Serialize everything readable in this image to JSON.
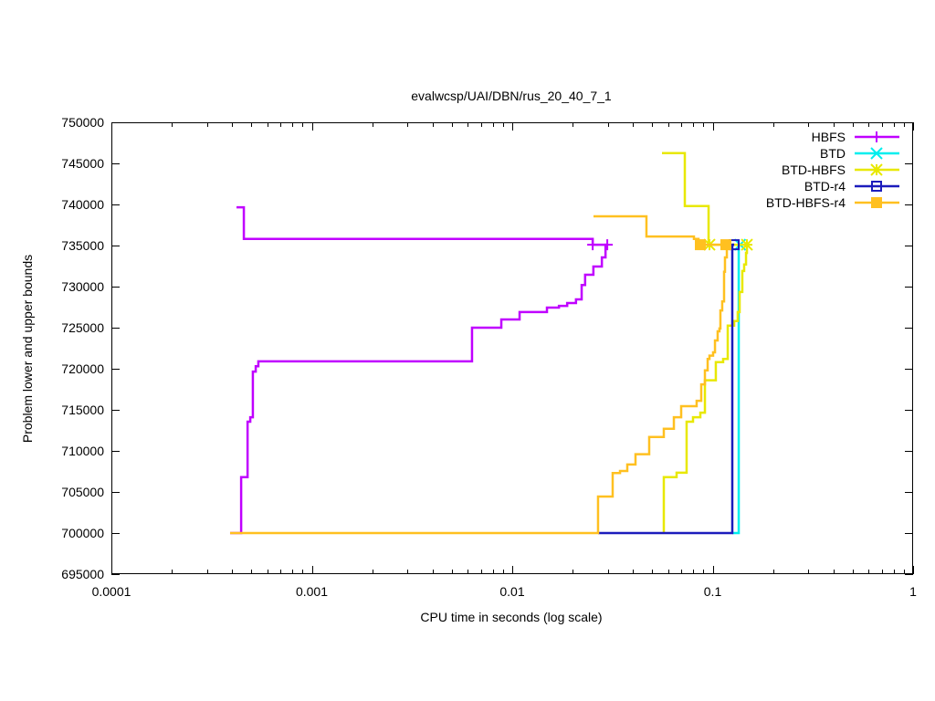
{
  "chart_data": {
    "type": "line",
    "title": "evalwcsp/UAI/DBN/rus_20_40_7_1",
    "xlabel": "CPU time in seconds (log scale)",
    "ylabel": "Problem lower and upper bounds",
    "xscale": "log",
    "xlim": [
      0.0001,
      1
    ],
    "ylim": [
      695000,
      750000
    ],
    "xticks": [
      0.0001,
      0.001,
      0.01,
      0.1,
      1
    ],
    "xtick_labels": [
      "0.0001",
      "0.001",
      "0.01",
      "0.1",
      "1"
    ],
    "yticks": [
      695000,
      700000,
      705000,
      710000,
      715000,
      720000,
      725000,
      730000,
      735000,
      740000,
      745000,
      750000
    ],
    "ytick_labels": [
      "695000",
      "700000",
      "705000",
      "710000",
      "715000",
      "720000",
      "725000",
      "730000",
      "735000",
      "740000",
      "745000",
      "750000"
    ],
    "grid": false,
    "legend_position": "top-right",
    "step_style": "horizontal-then-vertical",
    "series": [
      {
        "name": "HBFS",
        "color": "#c000ff",
        "marker": "plus",
        "markers": [
          [
            0.0252,
            735100
          ],
          [
            0.0298,
            735100
          ]
        ],
        "lower": [
          [
            0.000391,
            700000
          ],
          [
            0.000444,
            706800
          ],
          [
            0.000478,
            713550
          ],
          [
            0.000493,
            714100
          ],
          [
            0.000508,
            719650
          ],
          [
            0.000525,
            720300
          ],
          [
            0.000541,
            720900
          ],
          [
            0.0063,
            725000
          ],
          [
            0.00882,
            726000
          ],
          [
            0.01088,
            726900
          ],
          [
            0.0149,
            727450
          ],
          [
            0.0171,
            727650
          ],
          [
            0.0188,
            728000
          ],
          [
            0.0208,
            728450
          ],
          [
            0.0222,
            730200
          ],
          [
            0.0231,
            731450
          ],
          [
            0.0254,
            732450
          ],
          [
            0.028,
            733550
          ],
          [
            0.0292,
            735100
          ],
          [
            0.0298,
            735100
          ]
        ],
        "upper": [
          [
            0.000421,
            739650
          ],
          [
            0.000458,
            735800
          ],
          [
            0.0252,
            735100
          ],
          [
            0.0298,
            735100
          ]
        ]
      },
      {
        "name": "BTD",
        "color": "#00eeee",
        "marker": "cross",
        "markers": [
          [
            0.137,
            735100
          ]
        ],
        "lower": [
          [
            0.1253,
            700000
          ],
          [
            0.1349,
            735100
          ],
          [
            0.137,
            735100
          ]
        ],
        "upper": [
          [
            0.1349,
            735100
          ],
          [
            0.137,
            735100
          ]
        ]
      },
      {
        "name": "BTD-HBFS",
        "color": "#e8e800",
        "marker": "asterisk",
        "markers": [
          [
            0.0964,
            735100
          ],
          [
            0.1482,
            735100
          ]
        ],
        "lower": [
          [
            0.05705,
            700000
          ],
          [
            0.05705,
            706800
          ],
          [
            0.06607,
            707350
          ],
          [
            0.07413,
            713550
          ],
          [
            0.0798,
            714100
          ],
          [
            0.0868,
            714650
          ],
          [
            0.09148,
            718600
          ],
          [
            0.1037,
            720800
          ],
          [
            0.1128,
            721200
          ],
          [
            0.1189,
            725250
          ],
          [
            0.128,
            725800
          ],
          [
            0.1334,
            726900
          ],
          [
            0.1363,
            729350
          ],
          [
            0.1406,
            731900
          ],
          [
            0.1436,
            732700
          ],
          [
            0.1467,
            734100
          ],
          [
            0.1482,
            735100
          ]
        ],
        "upper": [
          [
            0.05587,
            746250
          ],
          [
            0.07262,
            739800
          ],
          [
            0.09541,
            735100
          ],
          [
            0.1482,
            735100
          ]
        ]
      },
      {
        "name": "BTD-r4",
        "color": "#1c1cbc",
        "marker": "open-square",
        "markers": [
          [
            0.128,
            735100
          ]
        ],
        "lower": [
          [
            0.0268,
            700000
          ],
          [
            0.1253,
            735100
          ],
          [
            0.128,
            735100
          ]
        ],
        "upper": [
          [
            0.1253,
            735100
          ],
          [
            0.128,
            735100
          ]
        ]
      },
      {
        "name": "BTD-HBFS-r4",
        "color": "#ffc020",
        "marker": "filled-square",
        "markers": [
          [
            0.0868,
            735100
          ],
          [
            0.1164,
            735100
          ]
        ],
        "lower": [
          [
            0.000391,
            700000
          ],
          [
            0.0268,
            704450
          ],
          [
            0.0317,
            707300
          ],
          [
            0.03449,
            707550
          ],
          [
            0.0375,
            708350
          ],
          [
            0.04121,
            709600
          ],
          [
            0.04823,
            711700
          ],
          [
            0.05705,
            712700
          ],
          [
            0.06404,
            714100
          ],
          [
            0.06964,
            715450
          ],
          [
            0.08318,
            716100
          ],
          [
            0.0877,
            718100
          ],
          [
            0.09148,
            719800
          ],
          [
            0.09441,
            721200
          ],
          [
            0.0964,
            721600
          ],
          [
            0.1005,
            722000
          ],
          [
            0.1027,
            723450
          ],
          [
            0.1059,
            724550
          ],
          [
            0.1081,
            724900
          ],
          [
            0.1093,
            727100
          ],
          [
            0.1116,
            728200
          ],
          [
            0.114,
            731800
          ],
          [
            0.1152,
            733550
          ],
          [
            0.1177,
            734550
          ],
          [
            0.1177,
            735100
          ]
        ],
        "upper": [
          [
            0.02543,
            738550
          ],
          [
            0.04673,
            736100
          ],
          [
            0.08065,
            735800
          ],
          [
            0.08499,
            735100
          ],
          [
            0.1164,
            735100
          ]
        ]
      }
    ]
  }
}
